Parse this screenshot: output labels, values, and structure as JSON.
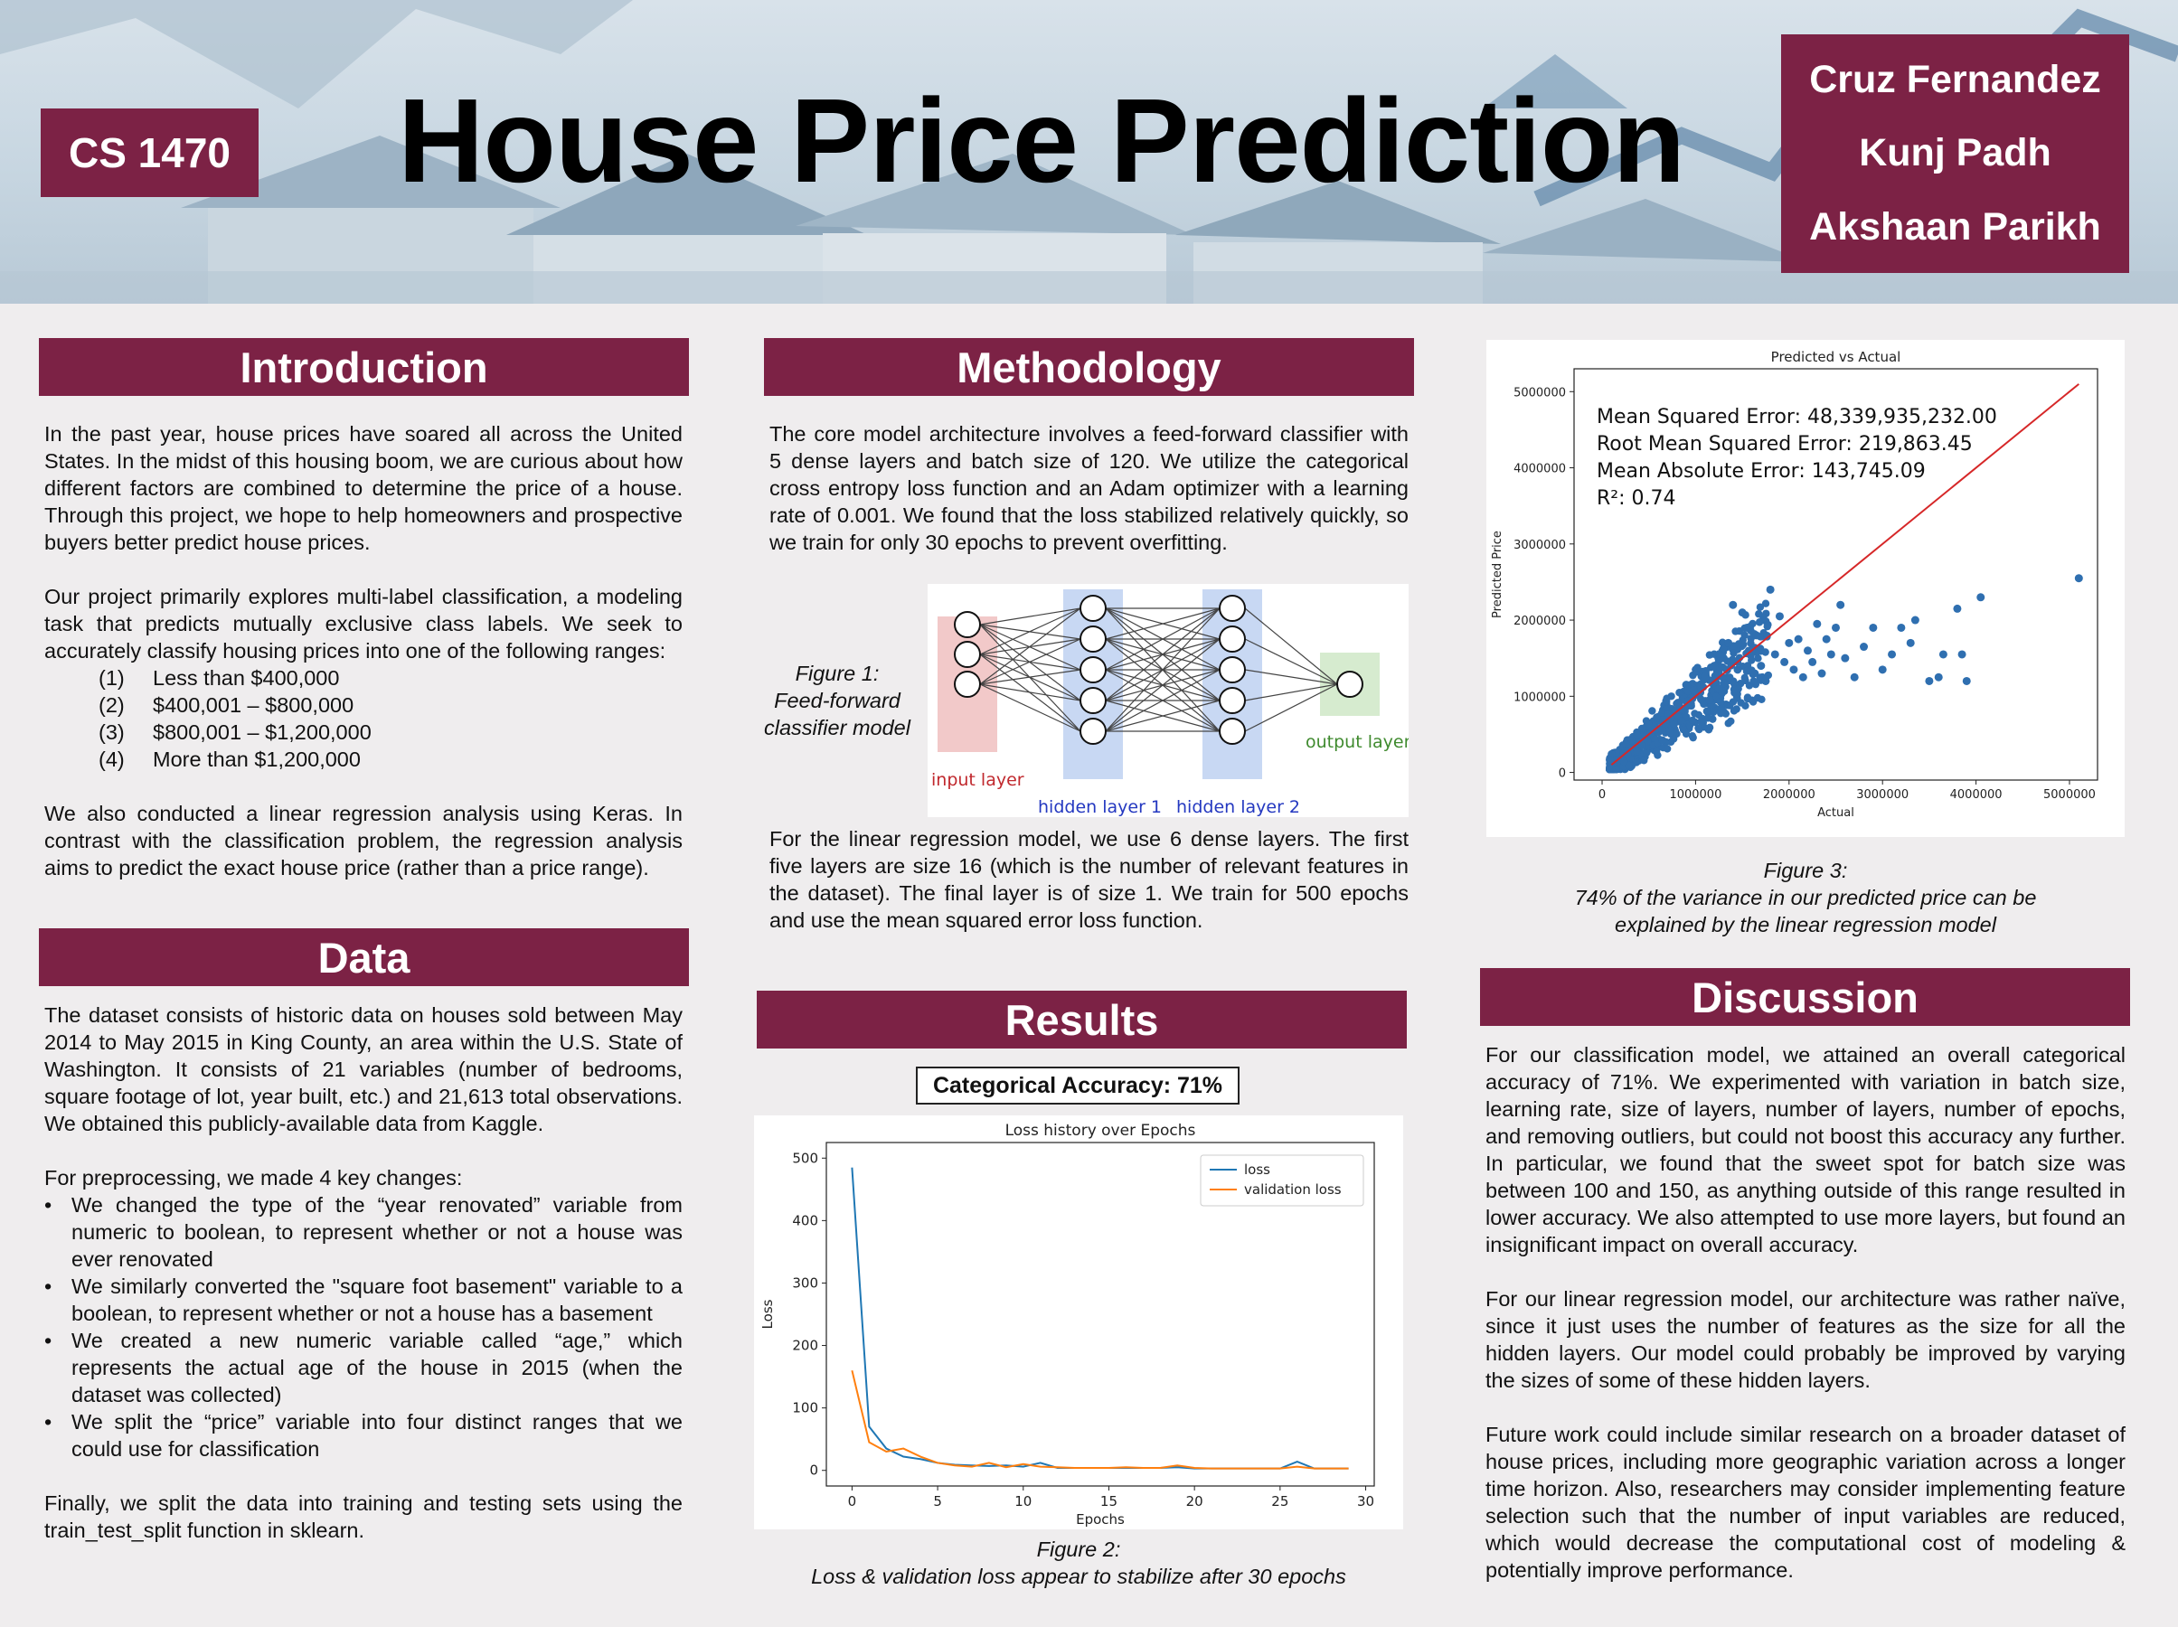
{
  "header": {
    "course": "CS 1470",
    "title": "House Price Prediction",
    "authors": [
      "Cruz Fernandez",
      "Kunj Padh",
      "Akshaan Parikh"
    ]
  },
  "introduction": {
    "heading": "Introduction",
    "p1": "In the past year, house prices have soared all across the United States. In the midst of this housing boom, we are curious about how different factors are combined to determine the price of a house. Through this project, we hope to help homeowners and prospective buyers better predict house prices.",
    "p2": "Our project primarily explores multi-label classification, a modeling task that predicts mutually exclusive class labels. We seek to accurately classify housing prices into one of the following ranges:",
    "ranges": [
      {
        "num": "(1)",
        "text": "Less than $400,000"
      },
      {
        "num": "(2)",
        "text": "$400,001 – $800,000"
      },
      {
        "num": "(3)",
        "text": "$800,001 – $1,200,000"
      },
      {
        "num": "(4)",
        "text": "More than $1,200,000"
      }
    ],
    "p3": "We also conducted a linear regression analysis using Keras. In contrast with the classification problem, the regression analysis aims to predict the exact house price (rather than a price range)."
  },
  "data_section": {
    "heading": "Data",
    "p1": "The dataset consists of historic data on houses sold between May 2014 to May 2015 in King County, an area within the U.S. State of Washington. It consists of 21 variables (number of bedrooms, square footage of lot, year built, etc.) and 21,613 total observations. We obtained this publicly-available data from Kaggle.",
    "p2": "For preprocessing, we made 4 key changes:",
    "bullets": [
      "We changed the type of the “year renovated” variable from numeric to boolean, to represent whether or not a house was ever renovated",
      "We similarly converted the \"square foot basement\" variable to a boolean, to represent whether or not a house has a basement",
      "We created a new numeric variable called “age,” which represents the actual age of the house in 2015 (when the dataset was collected)",
      "We split the “price” variable into four distinct ranges that we could use for classification"
    ],
    "p3": "Finally, we split the data into training and testing sets using the train_test_split function in sklearn."
  },
  "methodology": {
    "heading": "Methodology",
    "p1": "The core model architecture involves a feed-forward classifier with 5 dense layers and batch size of 120. We utilize the categorical cross entropy loss function and an Adam optimizer with a learning rate of 0.001. We found that the loss stabilized relatively quickly, so we train for only 30 epochs to prevent overfitting.",
    "figure1_caption": "Figure 1:\nFeed-forward\nclassifier model",
    "nn_labels": {
      "input": "input layer",
      "hidden1": "hidden layer 1",
      "hidden2": "hidden layer 2",
      "output": "output layer"
    },
    "p2": "For the linear regression model, we use 6 dense layers. The first five layers are size 16 (which is the number of relevant features in the dataset). The final layer is of size 1. We train for 500 epochs and use the mean squared error loss function."
  },
  "results": {
    "heading": "Results",
    "accuracy": "Categorical Accuracy: 71%",
    "figure2_caption_1": "Figure 2:",
    "figure2_caption_2": "Loss & validation loss appear to stabilize after 30 epochs"
  },
  "figure3": {
    "caption_1": "Figure 3:",
    "caption_2": "74% of the variance in our predicted price can be explained by the linear regression model",
    "metrics": [
      "Mean Squared Error: 48,339,935,232.00",
      "Root Mean Squared Error: 219,863.45",
      "Mean Absolute Error: 143,745.09",
      "R²: 0.74"
    ]
  },
  "discussion": {
    "heading": "Discussion",
    "p1": "For our classification model, we attained an overall categorical accuracy of 71%. We experimented with variation in batch size, learning rate, size of layers, number of layers, number of epochs, and removing outliers, but could not boost this accuracy any further. In particular, we found that the sweet spot for batch size was between 100 and 150, as anything outside of this range resulted in lower accuracy. We also attempted to use more layers, but found an insignificant impact on overall accuracy.",
    "p2": "For our linear regression model, our architecture was rather naïve, since it just uses the number of features as the size for all the hidden layers. Our model could probably be improved by varying the sizes of some of these hidden layers.",
    "p3": "Future work could include similar research on a broader dataset of house prices, including more geographic variation across a longer time horizon. Also, researchers may consider implementing feature selection such that the number of input variables are reduced, which would decrease the computational cost of modeling & potentially improve performance."
  },
  "colors": {
    "accent": "#7c2245",
    "loss": "#1f77b4",
    "validation_loss": "#ff7f0e",
    "fit_line": "#d62728",
    "scatter": "#2f6fb0"
  },
  "chart_data": [
    {
      "type": "line",
      "title": "Loss history over Epochs",
      "xlabel": "Epochs",
      "ylabel": "Loss",
      "xlim": [
        0,
        30
      ],
      "ylim": [
        0,
        500
      ],
      "xticks": [
        0,
        5,
        10,
        15,
        20,
        25,
        30
      ],
      "yticks": [
        0,
        100,
        200,
        300,
        400,
        500
      ],
      "legend_position": "top-right",
      "grid": false,
      "x": [
        0,
        1,
        2,
        3,
        4,
        5,
        6,
        7,
        8,
        9,
        10,
        11,
        12,
        13,
        14,
        15,
        16,
        17,
        18,
        19,
        20,
        21,
        22,
        23,
        24,
        25,
        26,
        27,
        28,
        29
      ],
      "series": [
        {
          "name": "loss",
          "color": "#1f77b4",
          "values": [
            485,
            70,
            35,
            22,
            18,
            12,
            9,
            8,
            7,
            8,
            6,
            12,
            4,
            4,
            4,
            4,
            4,
            4,
            4,
            5,
            3,
            3,
            3,
            3,
            3,
            3,
            14,
            3,
            3,
            3
          ]
        },
        {
          "name": "validation loss",
          "color": "#ff7f0e",
          "values": [
            160,
            45,
            30,
            35,
            22,
            12,
            8,
            6,
            12,
            5,
            10,
            6,
            5,
            4,
            4,
            4,
            5,
            4,
            4,
            8,
            4,
            3,
            3,
            3,
            3,
            3,
            6,
            3,
            3,
            3
          ]
        }
      ]
    },
    {
      "type": "scatter",
      "title": "Predicted vs Actual",
      "xlabel": "Actual",
      "ylabel": "Predicted Price",
      "xlim": [
        0,
        5000000
      ],
      "ylim": [
        0,
        5000000
      ],
      "xticks": [
        0,
        1000000,
        2000000,
        3000000,
        4000000,
        5000000
      ],
      "yticks": [
        0,
        1000000,
        2000000,
        3000000,
        4000000,
        5000000
      ],
      "grid": false,
      "fit_line": {
        "x": [
          100000,
          5100000
        ],
        "y": [
          100000,
          5100000
        ],
        "color": "#d62728"
      },
      "points": [
        [
          1400000,
          2200000
        ],
        [
          1500000,
          2100000
        ],
        [
          1650000,
          1800000
        ],
        [
          1800000,
          2400000
        ],
        [
          1900000,
          2050000
        ],
        [
          2000000,
          1700000
        ],
        [
          2100000,
          1750000
        ],
        [
          2200000,
          1600000
        ],
        [
          2300000,
          1950000
        ],
        [
          2400000,
          1750000
        ],
        [
          2500000,
          1900000
        ],
        [
          2550000,
          2200000
        ],
        [
          2600000,
          1500000
        ],
        [
          2700000,
          1250000
        ],
        [
          2800000,
          1650000
        ],
        [
          2900000,
          1900000
        ],
        [
          3000000,
          1350000
        ],
        [
          3100000,
          1550000
        ],
        [
          3200000,
          1900000
        ],
        [
          3300000,
          1700000
        ],
        [
          3350000,
          2000000
        ],
        [
          3500000,
          1200000
        ],
        [
          3600000,
          1250000
        ],
        [
          3650000,
          1550000
        ],
        [
          3800000,
          2150000
        ],
        [
          3850000,
          1550000
        ],
        [
          3900000,
          1200000
        ],
        [
          4050000,
          2300000
        ],
        [
          5100000,
          2550000
        ],
        [
          1200000,
          1400000
        ],
        [
          1300000,
          1500000
        ],
        [
          1100000,
          1250000
        ],
        [
          1600000,
          1600000
        ],
        [
          1700000,
          1400000
        ],
        [
          1550000,
          1900000
        ],
        [
          1350000,
          1700000
        ],
        [
          1450000,
          1350000
        ],
        [
          1250000,
          1100000
        ],
        [
          1750000,
          1200000
        ],
        [
          1850000,
          1550000
        ],
        [
          1950000,
          1450000
        ],
        [
          2050000,
          1350000
        ],
        [
          2150000,
          1250000
        ],
        [
          2250000,
          1450000
        ],
        [
          2350000,
          1300000
        ],
        [
          2450000,
          1550000
        ],
        [
          1150000,
          950000
        ],
        [
          1050000,
          1050000
        ],
        [
          900000,
          1150000
        ],
        [
          950000,
          900000
        ]
      ]
    }
  ]
}
